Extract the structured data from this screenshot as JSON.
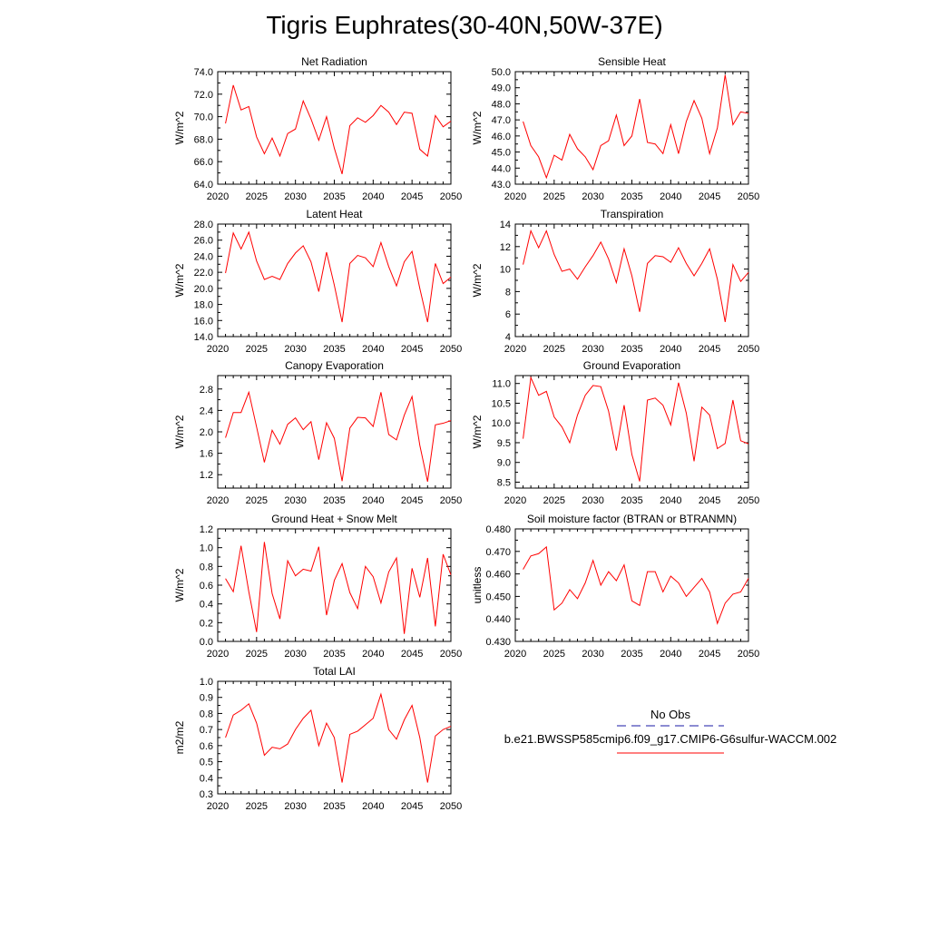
{
  "page": {
    "title": "Tigris Euphrates(30-40N,50W-37E)"
  },
  "colors": {
    "model_line": "#ff0000",
    "obs_line": "#1a1aa6",
    "axis": "#000000",
    "background": "#ffffff"
  },
  "legend": {
    "obs_label": "No Obs",
    "model_label": "b.e21.BWSSP585cmip6.f09_g17.CMIP6-G6sulfur-WACCM.002"
  },
  "chart_data": [
    {
      "type": "line",
      "title": "Net Radiation",
      "ylabel": "W/m^2",
      "xlim": [
        2020,
        2050
      ],
      "ylim": [
        64,
        74
      ],
      "xticks": [
        2020,
        2025,
        2030,
        2035,
        2040,
        2045,
        2050
      ],
      "yticks": [
        64,
        66,
        68,
        70,
        72,
        74
      ],
      "ytick_labels": [
        "64.0",
        "66.0",
        "68.0",
        "70.0",
        "72.0",
        "74.0"
      ],
      "x": [
        2021,
        2022,
        2023,
        2024,
        2025,
        2026,
        2027,
        2028,
        2029,
        2030,
        2031,
        2032,
        2033,
        2034,
        2035,
        2036,
        2037,
        2038,
        2039,
        2040,
        2041,
        2042,
        2043,
        2044,
        2045,
        2046,
        2047,
        2048,
        2049,
        2050
      ],
      "series": [
        {
          "values": [
            69.4,
            72.8,
            70.6,
            70.9,
            68.2,
            66.7,
            68.1,
            66.5,
            68.5,
            68.9,
            71.4,
            69.8,
            67.9,
            70.0,
            67.2,
            64.9,
            69.2,
            69.9,
            69.5,
            70.1,
            71.0,
            70.4,
            69.3,
            70.4,
            70.3,
            67.1,
            66.5,
            70.1,
            69.1,
            69.6
          ]
        }
      ]
    },
    {
      "type": "line",
      "title": "Sensible Heat",
      "ylabel": "W/m^2",
      "xlim": [
        2020,
        2050
      ],
      "ylim": [
        43,
        50
      ],
      "xticks": [
        2020,
        2025,
        2030,
        2035,
        2040,
        2045,
        2050
      ],
      "yticks": [
        43,
        44,
        45,
        46,
        47,
        48,
        49,
        50
      ],
      "ytick_labels": [
        "43.0",
        "44.0",
        "45.0",
        "46.0",
        "47.0",
        "48.0",
        "49.0",
        "50.0"
      ],
      "x": [
        2021,
        2022,
        2023,
        2024,
        2025,
        2026,
        2027,
        2028,
        2029,
        2030,
        2031,
        2032,
        2033,
        2034,
        2035,
        2036,
        2037,
        2038,
        2039,
        2040,
        2041,
        2042,
        2043,
        2044,
        2045,
        2046,
        2047,
        2048,
        2049,
        2050
      ],
      "series": [
        {
          "values": [
            46.9,
            45.4,
            44.7,
            43.4,
            44.8,
            44.5,
            46.1,
            45.2,
            44.7,
            43.9,
            45.4,
            45.7,
            47.3,
            45.4,
            46.0,
            48.3,
            45.6,
            45.5,
            44.9,
            46.7,
            44.9,
            46.9,
            48.2,
            47.1,
            44.9,
            46.5,
            49.8,
            46.7,
            47.5,
            47.4
          ]
        }
      ]
    },
    {
      "type": "line",
      "title": "Latent Heat",
      "ylabel": "W/m^2",
      "xlim": [
        2020,
        2050
      ],
      "ylim": [
        14,
        28
      ],
      "xticks": [
        2020,
        2025,
        2030,
        2035,
        2040,
        2045,
        2050
      ],
      "yticks": [
        14,
        16,
        18,
        20,
        22,
        24,
        26,
        28
      ],
      "ytick_labels": [
        "14.0",
        "16.0",
        "18.0",
        "20.0",
        "22.0",
        "24.0",
        "26.0",
        "28.0"
      ],
      "x": [
        2021,
        2022,
        2023,
        2024,
        2025,
        2026,
        2027,
        2028,
        2029,
        2030,
        2031,
        2032,
        2033,
        2034,
        2035,
        2036,
        2037,
        2038,
        2039,
        2040,
        2041,
        2042,
        2043,
        2044,
        2045,
        2046,
        2047,
        2048,
        2049,
        2050
      ],
      "series": [
        {
          "values": [
            21.9,
            26.9,
            24.9,
            27.0,
            23.4,
            21.1,
            21.5,
            21.1,
            23.1,
            24.4,
            25.3,
            23.3,
            19.6,
            24.5,
            20.4,
            15.8,
            23.1,
            24.1,
            23.8,
            22.7,
            25.7,
            22.7,
            20.3,
            23.3,
            24.6,
            20.0,
            15.8,
            23.1,
            20.6,
            21.4
          ]
        }
      ]
    },
    {
      "type": "line",
      "title": "Transpiration",
      "ylabel": "W/m^2",
      "xlim": [
        2020,
        2050
      ],
      "ylim": [
        4,
        14
      ],
      "xticks": [
        2020,
        2025,
        2030,
        2035,
        2040,
        2045,
        2050
      ],
      "yticks": [
        4,
        6,
        8,
        10,
        12,
        14
      ],
      "ytick_labels": [
        "4",
        "6",
        "8",
        "10",
        "12",
        "14"
      ],
      "x": [
        2021,
        2022,
        2023,
        2024,
        2025,
        2026,
        2027,
        2028,
        2029,
        2030,
        2031,
        2032,
        2033,
        2034,
        2035,
        2036,
        2037,
        2038,
        2039,
        2040,
        2041,
        2042,
        2043,
        2044,
        2045,
        2046,
        2047,
        2048,
        2049,
        2050
      ],
      "series": [
        {
          "values": [
            10.4,
            13.4,
            11.9,
            13.4,
            11.3,
            9.8,
            10.0,
            9.1,
            10.2,
            11.2,
            12.4,
            10.9,
            8.8,
            11.8,
            9.4,
            6.2,
            10.5,
            11.2,
            11.1,
            10.6,
            11.9,
            10.5,
            9.4,
            10.5,
            11.8,
            9.1,
            5.3,
            10.4,
            8.9,
            9.7
          ]
        }
      ]
    },
    {
      "type": "line",
      "title": "Canopy Evaporation",
      "ylabel": "W/m^2",
      "xlim": [
        2020,
        2050
      ],
      "ylim": [
        0.95,
        3.05
      ],
      "xticks": [
        2020,
        2025,
        2030,
        2035,
        2040,
        2045,
        2050
      ],
      "yticks": [
        1.2,
        1.6,
        2.0,
        2.4,
        2.8
      ],
      "ytick_labels": [
        "1.2",
        "1.6",
        "2.0",
        "2.4",
        "2.8"
      ],
      "x": [
        2021,
        2022,
        2023,
        2024,
        2025,
        2026,
        2027,
        2028,
        2029,
        2030,
        2031,
        2032,
        2033,
        2034,
        2035,
        2036,
        2037,
        2038,
        2039,
        2040,
        2041,
        2042,
        2043,
        2044,
        2045,
        2046,
        2047,
        2048,
        2049,
        2050
      ],
      "series": [
        {
          "values": [
            1.89,
            2.36,
            2.36,
            2.74,
            2.09,
            1.43,
            2.03,
            1.77,
            2.14,
            2.26,
            2.04,
            2.19,
            1.48,
            2.17,
            1.88,
            1.08,
            2.07,
            2.27,
            2.26,
            2.1,
            2.74,
            1.95,
            1.85,
            2.31,
            2.66,
            1.75,
            1.07,
            2.13,
            2.16,
            2.21
          ]
        }
      ]
    },
    {
      "type": "line",
      "title": "Ground Evaporation",
      "ylabel": "W/m^2",
      "xlim": [
        2020,
        2050
      ],
      "ylim": [
        8.35,
        11.2
      ],
      "xticks": [
        2020,
        2025,
        2030,
        2035,
        2040,
        2045,
        2050
      ],
      "yticks": [
        8.5,
        9.0,
        9.5,
        10.0,
        10.5,
        11.0
      ],
      "ytick_labels": [
        "8.5",
        "9.0",
        "9.5",
        "10.0",
        "10.5",
        "11.0"
      ],
      "x": [
        2021,
        2022,
        2023,
        2024,
        2025,
        2026,
        2027,
        2028,
        2029,
        2030,
        2031,
        2032,
        2033,
        2034,
        2035,
        2036,
        2037,
        2038,
        2039,
        2040,
        2041,
        2042,
        2043,
        2044,
        2045,
        2046,
        2047,
        2048,
        2049,
        2050
      ],
      "series": [
        {
          "values": [
            9.6,
            11.15,
            10.7,
            10.8,
            10.15,
            9.9,
            9.5,
            10.2,
            10.7,
            10.95,
            10.92,
            10.3,
            9.3,
            10.45,
            9.2,
            8.52,
            10.58,
            10.63,
            10.45,
            9.95,
            11.02,
            10.25,
            9.03,
            10.4,
            10.2,
            9.35,
            9.48,
            10.58,
            9.55,
            9.47
          ]
        }
      ]
    },
    {
      "type": "line",
      "title": "Ground Heat + Snow Melt",
      "ylabel": "W/m^2",
      "xlim": [
        2020,
        2050
      ],
      "ylim": [
        0,
        1.2
      ],
      "xticks": [
        2020,
        2025,
        2030,
        2035,
        2040,
        2045,
        2050
      ],
      "yticks": [
        0,
        0.2,
        0.4,
        0.6,
        0.8,
        1.0,
        1.2
      ],
      "ytick_labels": [
        "0.0",
        "0.2",
        "0.4",
        "0.6",
        "0.8",
        "1.0",
        "1.2"
      ],
      "x": [
        2021,
        2022,
        2023,
        2024,
        2025,
        2026,
        2027,
        2028,
        2029,
        2030,
        2031,
        2032,
        2033,
        2034,
        2035,
        2036,
        2037,
        2038,
        2039,
        2040,
        2041,
        2042,
        2043,
        2044,
        2045,
        2046,
        2047,
        2048,
        2049,
        2050
      ],
      "series": [
        {
          "values": [
            0.67,
            0.53,
            1.02,
            0.53,
            0.1,
            1.06,
            0.51,
            0.24,
            0.86,
            0.7,
            0.77,
            0.75,
            1.01,
            0.28,
            0.65,
            0.83,
            0.52,
            0.35,
            0.8,
            0.69,
            0.41,
            0.74,
            0.89,
            0.08,
            0.78,
            0.47,
            0.89,
            0.16,
            0.93,
            0.71
          ]
        }
      ]
    },
    {
      "type": "line",
      "title": "Soil moisture factor (BTRAN or BTRANMN)",
      "ylabel": "unitless",
      "xlim": [
        2020,
        2050
      ],
      "ylim": [
        0.43,
        0.48
      ],
      "xticks": [
        2020,
        2025,
        2030,
        2035,
        2040,
        2045,
        2050
      ],
      "yticks": [
        0.43,
        0.44,
        0.45,
        0.46,
        0.47,
        0.48
      ],
      "ytick_labels": [
        "0.430",
        "0.440",
        "0.450",
        "0.460",
        "0.470",
        "0.480"
      ],
      "x": [
        2021,
        2022,
        2023,
        2024,
        2025,
        2026,
        2027,
        2028,
        2029,
        2030,
        2031,
        2032,
        2033,
        2034,
        2035,
        2036,
        2037,
        2038,
        2039,
        2040,
        2041,
        2042,
        2043,
        2044,
        2045,
        2046,
        2047,
        2048,
        2049,
        2050
      ],
      "series": [
        {
          "values": [
            0.462,
            0.468,
            0.469,
            0.472,
            0.444,
            0.447,
            0.453,
            0.449,
            0.456,
            0.466,
            0.455,
            0.461,
            0.457,
            0.464,
            0.448,
            0.446,
            0.461,
            0.461,
            0.452,
            0.459,
            0.456,
            0.45,
            0.454,
            0.458,
            0.452,
            0.438,
            0.447,
            0.451,
            0.452,
            0.458
          ]
        }
      ]
    },
    {
      "type": "line",
      "title": "Total LAI",
      "ylabel": "m2/m2",
      "xlim": [
        2020,
        2050
      ],
      "ylim": [
        0.3,
        1.0
      ],
      "xticks": [
        2020,
        2025,
        2030,
        2035,
        2040,
        2045,
        2050
      ],
      "yticks": [
        0.3,
        0.4,
        0.5,
        0.6,
        0.7,
        0.8,
        0.9,
        1.0
      ],
      "ytick_labels": [
        "0.3",
        "0.4",
        "0.5",
        "0.6",
        "0.7",
        "0.8",
        "0.9",
        "1.0"
      ],
      "x": [
        2021,
        2022,
        2023,
        2024,
        2025,
        2026,
        2027,
        2028,
        2029,
        2030,
        2031,
        2032,
        2033,
        2034,
        2035,
        2036,
        2037,
        2038,
        2039,
        2040,
        2041,
        2042,
        2043,
        2044,
        2045,
        2046,
        2047,
        2048,
        2049,
        2050
      ],
      "series": [
        {
          "values": [
            0.65,
            0.79,
            0.82,
            0.86,
            0.74,
            0.54,
            0.59,
            0.58,
            0.61,
            0.7,
            0.77,
            0.82,
            0.6,
            0.74,
            0.65,
            0.37,
            0.67,
            0.69,
            0.73,
            0.77,
            0.92,
            0.7,
            0.64,
            0.76,
            0.85,
            0.65,
            0.37,
            0.66,
            0.7,
            0.72
          ]
        }
      ]
    }
  ]
}
